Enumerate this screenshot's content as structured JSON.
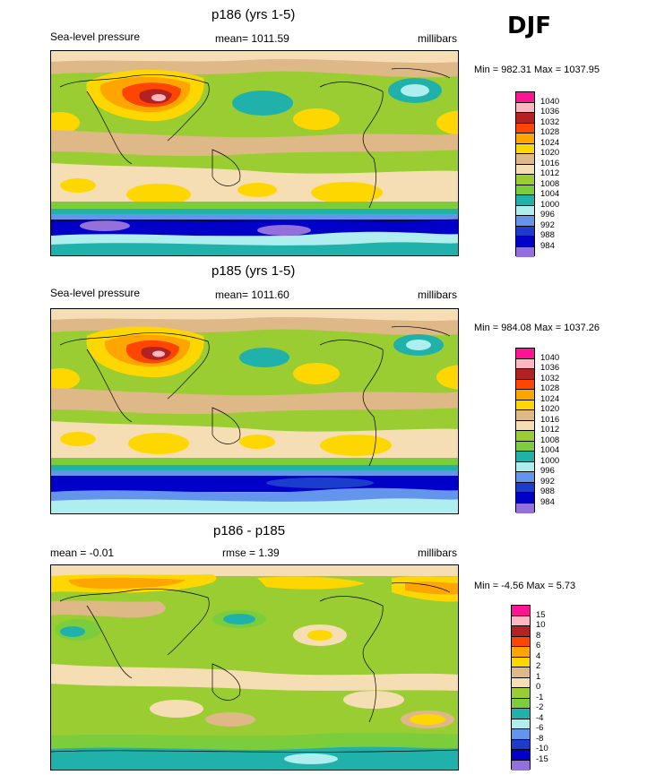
{
  "season": "DJF",
  "panels": [
    {
      "title": "p186 (yrs 1-5)",
      "left_label": "Sea-level pressure",
      "mid_label": "mean= 1011.59",
      "units": "millibars",
      "minmax": "Min = 982.31 Max = 1037.95",
      "levels": [
        "1040",
        "1036",
        "1032",
        "1028",
        "1024",
        "1020",
        "1016",
        "1012",
        "1008",
        "1004",
        "1000",
        "996",
        "992",
        "988",
        "984"
      ],
      "colors": [
        "#ff1493",
        "#ffb6c1",
        "#b22222",
        "#ff4500",
        "#ffa500",
        "#ffd700",
        "#deb887",
        "#f5deb3",
        "#9acd32",
        "#7ccd3c",
        "#20b2aa",
        "#aeeeee",
        "#6495ed",
        "#1c3ccc",
        "#0000c8",
        "#9370db"
      ]
    },
    {
      "title": "p185 (yrs 1-5)",
      "left_label": "Sea-level pressure",
      "mid_label": "mean= 1011.60",
      "units": "millibars",
      "minmax": "Min = 984.08 Max = 1037.26",
      "levels": [
        "1040",
        "1036",
        "1032",
        "1028",
        "1024",
        "1020",
        "1016",
        "1012",
        "1008",
        "1004",
        "1000",
        "996",
        "992",
        "988",
        "984"
      ],
      "colors": [
        "#ff1493",
        "#ffb6c1",
        "#b22222",
        "#ff4500",
        "#ffa500",
        "#ffd700",
        "#deb887",
        "#f5deb3",
        "#9acd32",
        "#7ccd3c",
        "#20b2aa",
        "#aeeeee",
        "#6495ed",
        "#1c3ccc",
        "#0000c8",
        "#9370db"
      ]
    },
    {
      "title": "p186 - p185",
      "left_label": "mean =  -0.01",
      "mid_label": "rmse =   1.39",
      "units": "millibars",
      "minmax": "Min =  -4.56 Max =   5.73",
      "levels": [
        "15",
        "10",
        "8",
        "6",
        "4",
        "2",
        "1",
        "0",
        "-1",
        "-2",
        "-4",
        "-6",
        "-8",
        "-10",
        "-15"
      ],
      "colors": [
        "#ff1493",
        "#ffb6c1",
        "#b22222",
        "#ff4500",
        "#ffa500",
        "#ffd700",
        "#deb887",
        "#f5deb3",
        "#9acd32",
        "#7ccd3c",
        "#20b2aa",
        "#aeeeee",
        "#6495ed",
        "#1c3ccc",
        "#0000c8",
        "#9370db"
      ]
    }
  ]
}
